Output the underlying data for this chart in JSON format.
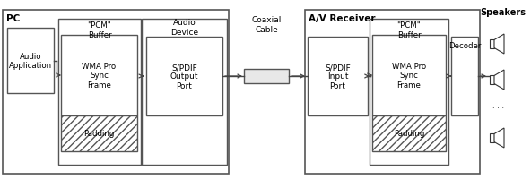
{
  "bg_color": "#ffffff",
  "pc_label": "PC",
  "av_label": "A/V Receiver",
  "speakers_label": "Speakers",
  "audio_app_label": "Audio\nApplication",
  "audio_device_label": "Audio\nDevice",
  "coaxial_label": "Coaxial\nCable",
  "pcm_buffer_left_label": "\"PCM\"\nBuffer",
  "wma_frame_left_label": "WMA Pro\nSync\nFrame",
  "padding_left_label": "Padding",
  "spdif_out_label": "S/PDIF\nOutput\nPort",
  "spdif_in_label": "S/PDIF\nInput\nPort",
  "pcm_buffer_right_label": "\"PCM\"\nBuffer",
  "wma_frame_right_label": "WMA Pro\nSync\nFrame",
  "padding_right_label": "Padding",
  "decoder_label": "Decoder",
  "edge_color": "#555555",
  "text_color": "#000000"
}
